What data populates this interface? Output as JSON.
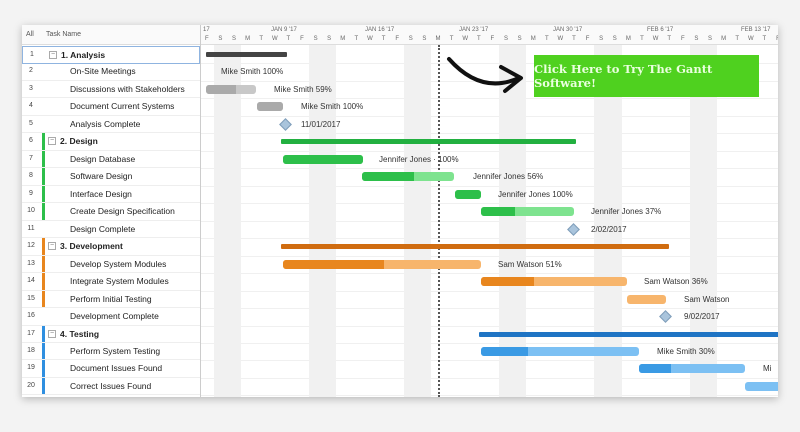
{
  "header": {
    "all_label": "All",
    "task_name_label": "Task Name",
    "weeks": [
      "JAN 9 '17",
      "JAN 16 '17",
      "JAN 23 '17",
      "JAN 30 '17",
      "FEB 6 '17",
      "FEB 13 '17"
    ],
    "first_week_partial": "17",
    "days": [
      "F",
      "S",
      "S",
      "M",
      "T",
      "W",
      "T"
    ]
  },
  "cta": {
    "label": "Click Here to Try The Gantt Software!",
    "color": "#4fd11f"
  },
  "colors": {
    "analysis": "#555555",
    "design": "#2dbf4a",
    "development": "#e8861e",
    "testing": "#2f8fe0"
  },
  "tasks": [
    {
      "num": "1",
      "name": "1. Analysis",
      "group": true,
      "color": "analysis"
    },
    {
      "num": "2",
      "name": "On-Site Meetings",
      "label": "Mike Smith  100%",
      "progress": 100,
      "color": "analysis"
    },
    {
      "num": "3",
      "name": "Discussions with Stakeholders",
      "label": "Mike Smith  59%",
      "progress": 59,
      "color": "analysis"
    },
    {
      "num": "4",
      "name": "Document Current Systems",
      "label": "Mike Smith  100%",
      "progress": 100,
      "color": "analysis"
    },
    {
      "num": "5",
      "name": "Analysis Complete",
      "label": "11/01/2017",
      "milestone": true
    },
    {
      "num": "6",
      "name": "2. Design",
      "group": true,
      "color": "design"
    },
    {
      "num": "7",
      "name": "Design Database",
      "label": "Jennifer Jones · 100%",
      "progress": 100,
      "color": "design"
    },
    {
      "num": "8",
      "name": "Software Design",
      "label": "Jennifer Jones  56%",
      "progress": 56,
      "color": "design"
    },
    {
      "num": "9",
      "name": "Interface Design",
      "label": "Jennifer Jones  100%",
      "progress": 100,
      "color": "design"
    },
    {
      "num": "10",
      "name": "Create Design Specification",
      "label": "Jennifer Jones  37%",
      "progress": 37,
      "color": "design"
    },
    {
      "num": "11",
      "name": "Design Complete",
      "label": "2/02/2017",
      "milestone": true
    },
    {
      "num": "12",
      "name": "3. Development",
      "group": true,
      "color": "development"
    },
    {
      "num": "13",
      "name": "Develop System Modules",
      "label": "Sam Watson  51%",
      "progress": 51,
      "color": "development"
    },
    {
      "num": "14",
      "name": "Integrate System Modules",
      "label": "Sam Watson  36%",
      "progress": 36,
      "color": "development"
    },
    {
      "num": "15",
      "name": "Perform Initial Testing",
      "label": "Sam Watson",
      "progress": 0,
      "color": "development"
    },
    {
      "num": "16",
      "name": "Development Complete",
      "label": "9/02/2017",
      "milestone": true
    },
    {
      "num": "17",
      "name": "4. Testing",
      "group": true,
      "color": "testing"
    },
    {
      "num": "18",
      "name": "Perform System Testing",
      "label": "Mike Smith  30%",
      "progress": 30,
      "color": "testing"
    },
    {
      "num": "19",
      "name": "Document Issues Found",
      "label": "Mi",
      "progress": 30,
      "color": "testing"
    },
    {
      "num": "20",
      "name": "Correct Issues Found",
      "label": "",
      "progress": 0,
      "color": "testing"
    }
  ]
}
